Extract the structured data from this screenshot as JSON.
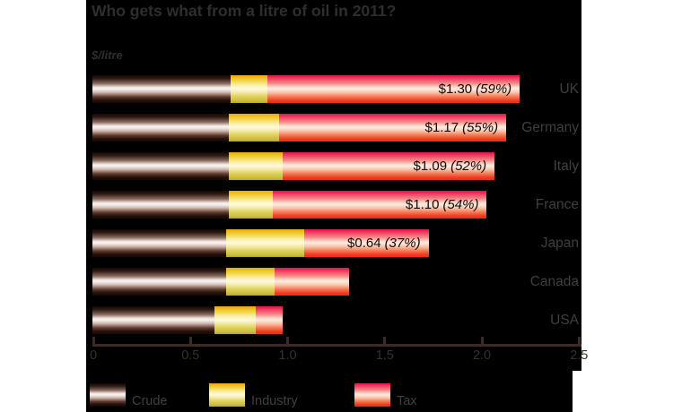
{
  "title": "Who gets what from a litre of oil in 2011?",
  "unit_label": "$/litre",
  "chart_data": {
    "type": "bar",
    "orientation": "horizontal",
    "stacked": true,
    "categories": [
      "UK",
      "Germany",
      "Italy",
      "France",
      "Japan",
      "Canada",
      "USA"
    ],
    "series": [
      {
        "name": "Crude",
        "values": [
          0.71,
          0.7,
          0.7,
          0.7,
          0.69,
          0.69,
          0.63
        ]
      },
      {
        "name": "Industry",
        "values": [
          0.19,
          0.26,
          0.28,
          0.23,
          0.4,
          0.25,
          0.21
        ]
      },
      {
        "name": "Tax",
        "values": [
          1.3,
          1.17,
          1.09,
          1.1,
          0.64,
          0.38,
          0.14
        ]
      }
    ],
    "bar_labels": [
      {
        "value": "$1.30",
        "pct": "(59%)"
      },
      {
        "value": "$1.17",
        "pct": "(55%)"
      },
      {
        "value": "$1.09",
        "pct": "(52%)"
      },
      {
        "value": "$1.10",
        "pct": "(54%)"
      },
      {
        "value": "$0.64",
        "pct": "(37%)"
      },
      null,
      null
    ],
    "xlim": [
      0,
      2.5
    ],
    "x_ticks": [
      {
        "value": 0.0,
        "label": "0"
      },
      {
        "value": 0.5,
        "label": "0.5"
      },
      {
        "value": 1.0,
        "label": "1.0"
      },
      {
        "value": 1.5,
        "label": "1.5"
      },
      {
        "value": 2.0,
        "label": "2.0"
      },
      {
        "value": 2.5,
        "label": "2.5"
      }
    ],
    "legend": [
      "Crude",
      "Industry",
      "Tax"
    ],
    "legend_position": "bottom",
    "grid": false
  },
  "colors": {
    "page_background": "#ffffff",
    "chart_background": "#000000",
    "title_text": "#2e2e2e",
    "country_text": "#3f3f3f",
    "axis": "#3a2c25",
    "tick_text": "#38302c",
    "bar_label_text": "#0d0d0d",
    "legend_text": "#3f3f3f",
    "crude_gradient": [
      "#120805",
      "#2f1b14",
      "#8a6c5f",
      "#f4ece8",
      "#f7f1ee",
      "#cdb6ac",
      "#5e3b2d",
      "#26100a",
      "#150904"
    ],
    "industry_gradient": [
      "#e9a90c",
      "#f0c527",
      "#f7e784",
      "#fcf7d2",
      "#fdfadd",
      "#f3e9a4",
      "#ddcf56",
      "#cdc040",
      "#baa82e"
    ],
    "tax_gradient": [
      "#e70d4d",
      "#ee4163",
      "#f58d8a",
      "#fcdfd0",
      "#fdeadd",
      "#f9c4ab",
      "#f4764f",
      "#f03f27",
      "#e92a1a"
    ],
    "gradient_stops_pct": [
      0,
      12,
      30,
      44,
      50,
      62,
      78,
      90,
      100
    ]
  }
}
